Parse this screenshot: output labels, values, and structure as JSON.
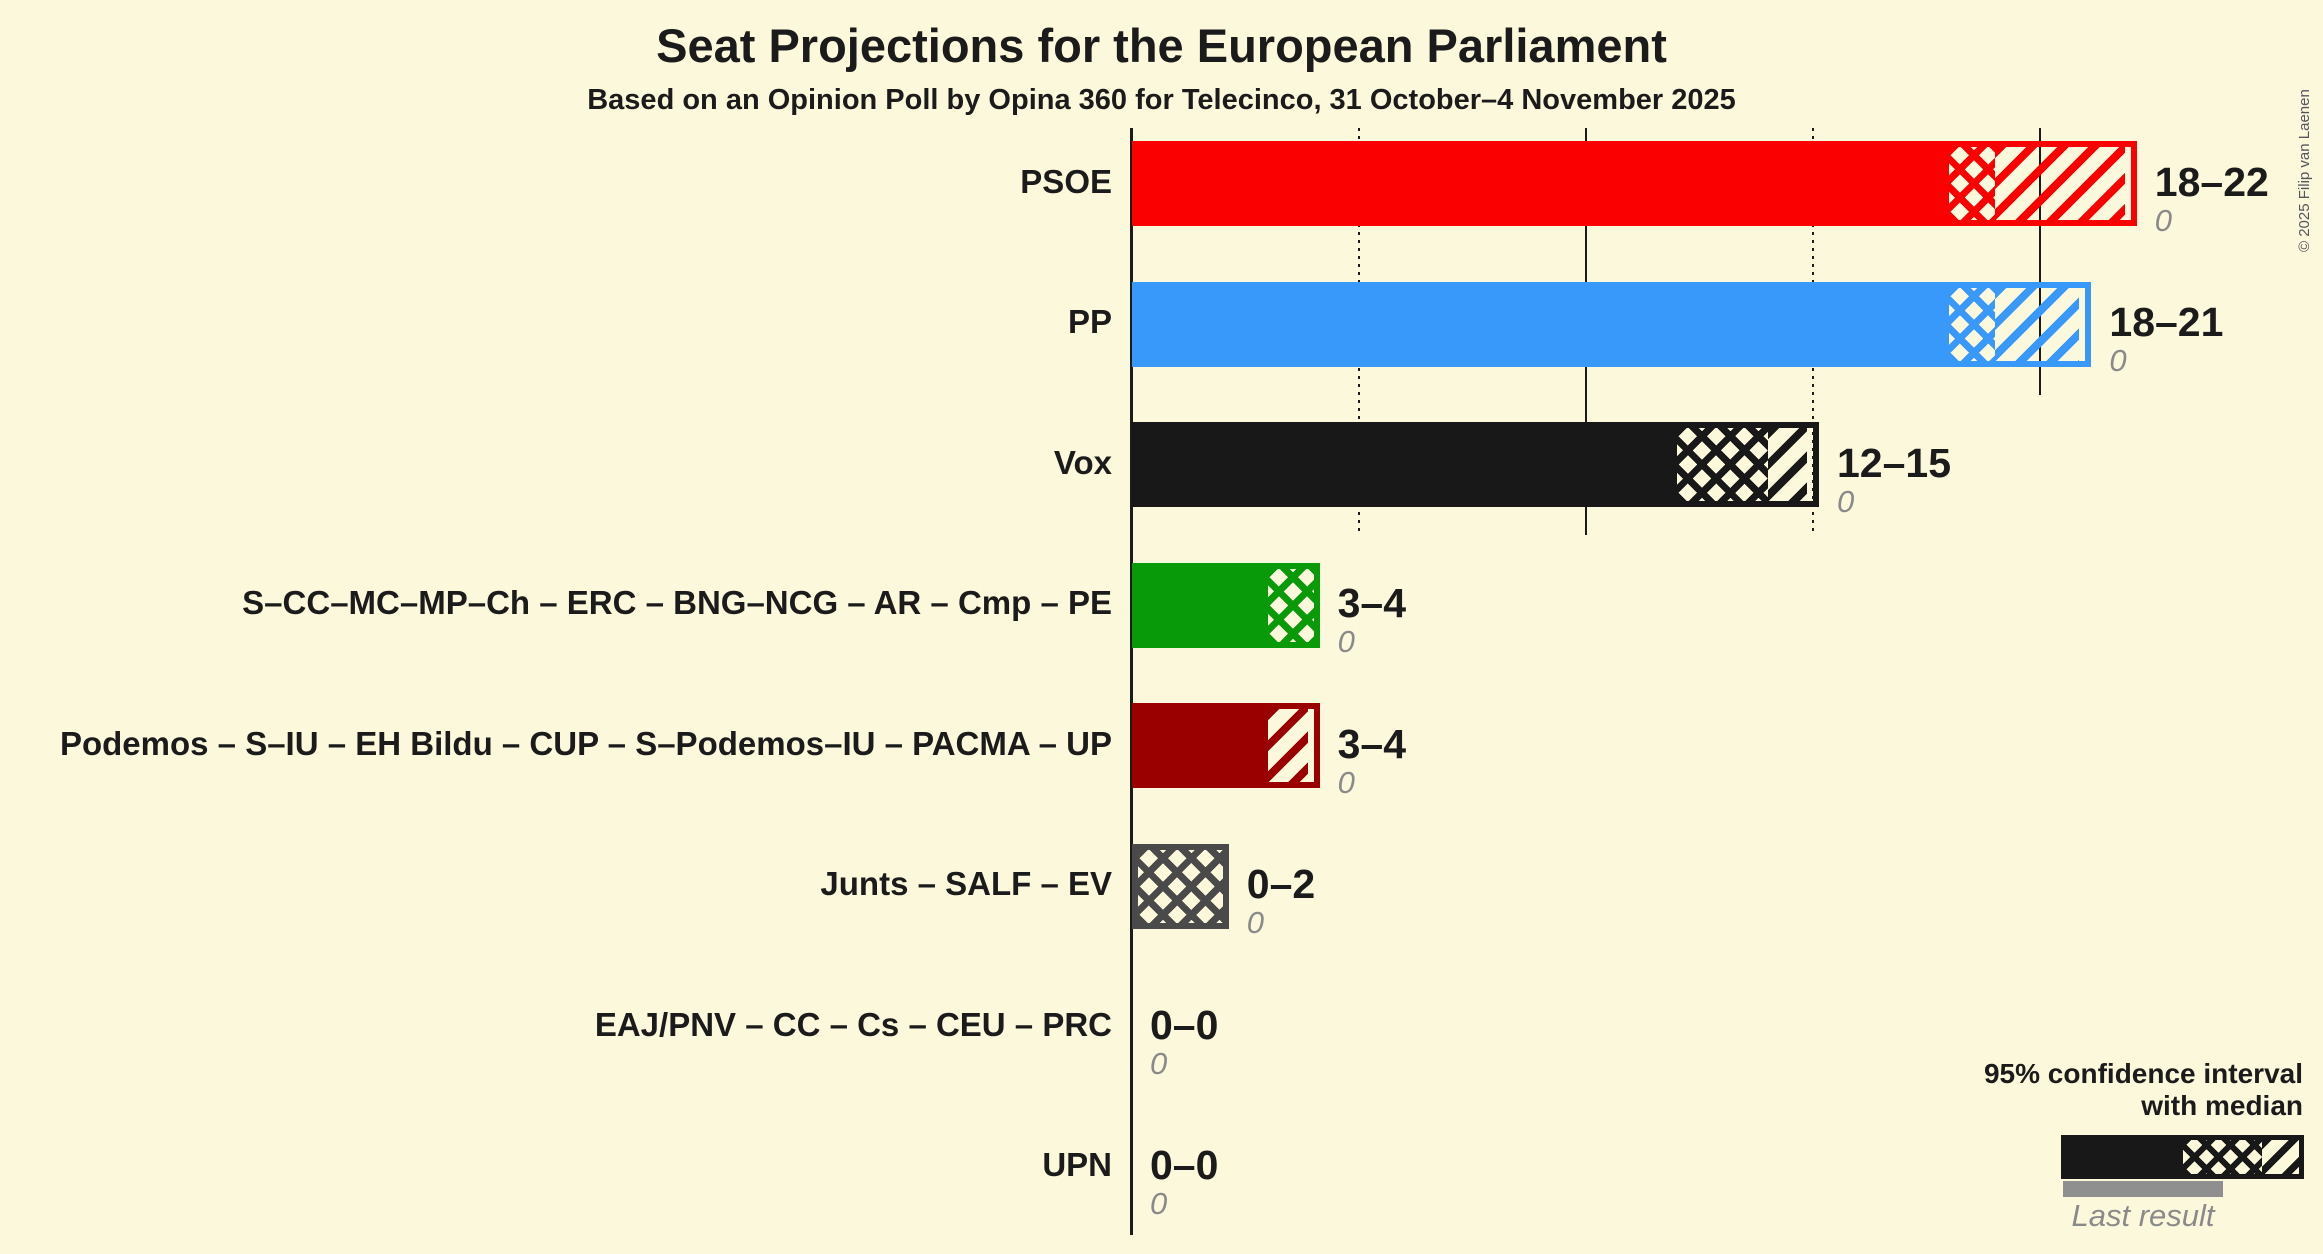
{
  "title": "Seat Projections for the European Parliament",
  "subtitle": "Based on an Opinion Poll by Opina 360 for Telecinco, 31 October–4 November 2025",
  "copyright": "© 2025 Filip van Laenen",
  "legend": {
    "line1": "95% confidence interval",
    "line2": "with median",
    "last_result_label": "Last result",
    "sample_color": "#181818",
    "last_result_bar_color": "#8f8f8f"
  },
  "colors": {
    "background": "#fcf8dc",
    "text": "#1b1b1b",
    "muted": "#8a8a8a",
    "gridline": "#1b1b1b"
  },
  "chart_data": {
    "type": "bar",
    "unit": "seats",
    "title": "Seat Projections for the European Parliament",
    "xlabel": "seats",
    "ylabel": "",
    "xlim": [
      0,
      22
    ],
    "x_ticks": [
      {
        "value": 5,
        "style": "dotted"
      },
      {
        "value": 10,
        "style": "solid"
      },
      {
        "value": 15,
        "style": "dotted"
      },
      {
        "value": 20,
        "style": "solid"
      }
    ],
    "legend_note": "solid = below CI low, crosshatch = CI low to median, diagonal = median to CI high",
    "rows": [
      {
        "label": "PSOE",
        "ci_low": 18,
        "median": 19,
        "ci_high": 22,
        "value_label": "18–22",
        "last_result": "0",
        "color": "#fa0000"
      },
      {
        "label": "PP",
        "ci_low": 18,
        "median": 19,
        "ci_high": 21,
        "value_label": "18–21",
        "last_result": "0",
        "color": "#3899fa"
      },
      {
        "label": "Vox",
        "ci_low": 12,
        "median": 14,
        "ci_high": 15,
        "value_label": "12–15",
        "last_result": "0",
        "color": "#181818"
      },
      {
        "label": "S–CC–MC–MP–Ch – ERC – BNG–NCG – AR – Cmp – PE",
        "ci_low": 3,
        "median": 4,
        "ci_high": 4,
        "value_label": "3–4",
        "last_result": "0",
        "color": "#089a08"
      },
      {
        "label": "Podemos – S–IU – EH Bildu – CUP – S–Podemos–IU – PACMA – UP",
        "ci_low": 3,
        "median": 3,
        "ci_high": 4,
        "value_label": "3–4",
        "last_result": "0",
        "color": "#9a0000"
      },
      {
        "label": "Junts – SALF – EV",
        "ci_low": 0,
        "median": 2,
        "ci_high": 2,
        "value_label": "0–2",
        "last_result": "0",
        "color": "#4a4a4a"
      },
      {
        "label": "EAJ/PNV – CC – Cs – CEU – PRC",
        "ci_low": 0,
        "median": 0,
        "ci_high": 0,
        "value_label": "0–0",
        "last_result": "0",
        "color": "#888888"
      },
      {
        "label": "UPN",
        "ci_low": 0,
        "median": 0,
        "ci_high": 0,
        "value_label": "0–0",
        "last_result": "0",
        "color": "#888888"
      }
    ]
  }
}
